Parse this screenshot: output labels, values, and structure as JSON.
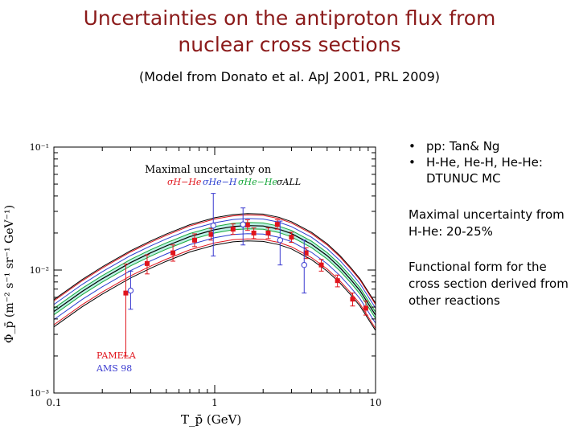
{
  "slide": {
    "title_line1": "Uncertainties on the antiproton flux from",
    "title_line2": "nuclear cross sections",
    "subtitle": "(Model from Donato et al. ApJ 2001, PRL 2009)",
    "bullets": [
      "pp: Tan& Ng",
      "H-He, He-H, He-He: DTUNUC MC"
    ],
    "note1": "Maximal uncertainty from H-He: 20-25%",
    "note2": "Functional form for the cross section derived from other reactions"
  },
  "colors": {
    "title": "#8b1a1a",
    "pamela": "#e0141c",
    "ams": "#3a3ad0",
    "band_hhe": "#e0141c",
    "band_heh": "#2b3fd0",
    "band_hehe": "#18a83c",
    "band_all": "#000000"
  },
  "chart_data": {
    "type": "scatter",
    "xscale": "log",
    "yscale": "log",
    "xlim": [
      0.1,
      10
    ],
    "ylim": [
      0.001,
      0.1
    ],
    "xlabel": "T_p̄ (GeV)",
    "ylabel": "Φ_p̄ (m⁻² s⁻¹ sr⁻¹ GeV⁻¹)",
    "xticks": [
      "0.1",
      "1",
      "10"
    ],
    "yticks": [
      "10⁻¹",
      "10⁻²",
      "10⁻³"
    ],
    "legend_title": "Maximal uncertainty on",
    "legend_entries": [
      "σH−He",
      "σHe−H",
      "σHe−He",
      "σALL"
    ],
    "series": [
      {
        "name": "PAMELA",
        "marker": "filled-square",
        "points": [
          {
            "x": 0.28,
            "y": 0.0065,
            "lo": 0.002,
            "hi": 0.0112
          },
          {
            "x": 0.38,
            "y": 0.0113,
            "lo": 0.0093,
            "hi": 0.0133
          },
          {
            "x": 0.55,
            "y": 0.0138,
            "lo": 0.0118,
            "hi": 0.016
          },
          {
            "x": 0.75,
            "y": 0.0175,
            "lo": 0.0155,
            "hi": 0.0197
          },
          {
            "x": 0.95,
            "y": 0.0195,
            "lo": 0.0175,
            "hi": 0.0218
          },
          {
            "x": 1.3,
            "y": 0.0215,
            "lo": 0.0195,
            "hi": 0.0237
          },
          {
            "x": 1.6,
            "y": 0.0233,
            "lo": 0.021,
            "hi": 0.0256
          },
          {
            "x": 1.75,
            "y": 0.02,
            "lo": 0.018,
            "hi": 0.022
          },
          {
            "x": 2.15,
            "y": 0.02,
            "lo": 0.018,
            "hi": 0.022
          },
          {
            "x": 2.45,
            "y": 0.0235,
            "lo": 0.0215,
            "hi": 0.0257
          },
          {
            "x": 3.0,
            "y": 0.0185,
            "lo": 0.0168,
            "hi": 0.0203
          },
          {
            "x": 3.7,
            "y": 0.0138,
            "lo": 0.0124,
            "hi": 0.0152
          },
          {
            "x": 4.6,
            "y": 0.011,
            "lo": 0.0098,
            "hi": 0.0122
          },
          {
            "x": 5.8,
            "y": 0.0082,
            "lo": 0.0073,
            "hi": 0.0091
          },
          {
            "x": 7.2,
            "y": 0.0058,
            "lo": 0.0051,
            "hi": 0.0065
          },
          {
            "x": 8.7,
            "y": 0.0049,
            "lo": 0.0043,
            "hi": 0.0056
          }
        ]
      },
      {
        "name": "AMS 98",
        "marker": "open-circle",
        "points": [
          {
            "x": 0.3,
            "y": 0.0068,
            "lo": 0.0048,
            "hi": 0.0098
          },
          {
            "x": 0.98,
            "y": 0.023,
            "lo": 0.013,
            "hi": 0.042
          },
          {
            "x": 1.5,
            "y": 0.0235,
            "lo": 0.016,
            "hi": 0.032
          },
          {
            "x": 2.55,
            "y": 0.0175,
            "lo": 0.011,
            "hi": 0.025
          },
          {
            "x": 3.6,
            "y": 0.011,
            "lo": 0.0065,
            "hi": 0.0175
          }
        ]
      }
    ],
    "model_curve": {
      "x": [
        0.1,
        0.15,
        0.2,
        0.3,
        0.4,
        0.5,
        0.7,
        1.0,
        1.3,
        1.6,
        2.0,
        2.5,
        3.0,
        4.0,
        5.0,
        6.0,
        7.0,
        8.0,
        10.0
      ],
      "y": [
        0.0046,
        0.0067,
        0.0085,
        0.0115,
        0.0138,
        0.0157,
        0.0187,
        0.0213,
        0.0226,
        0.023,
        0.0228,
        0.0215,
        0.0198,
        0.0162,
        0.0131,
        0.0105,
        0.0084,
        0.0068,
        0.0043
      ]
    },
    "bands": [
      {
        "name": "σALL",
        "rel": 0.25
      },
      {
        "name": "σH−He",
        "rel": 0.22
      },
      {
        "name": "σHe−H",
        "rel": 0.14
      },
      {
        "name": "σHe−He",
        "rel": 0.06
      }
    ]
  }
}
